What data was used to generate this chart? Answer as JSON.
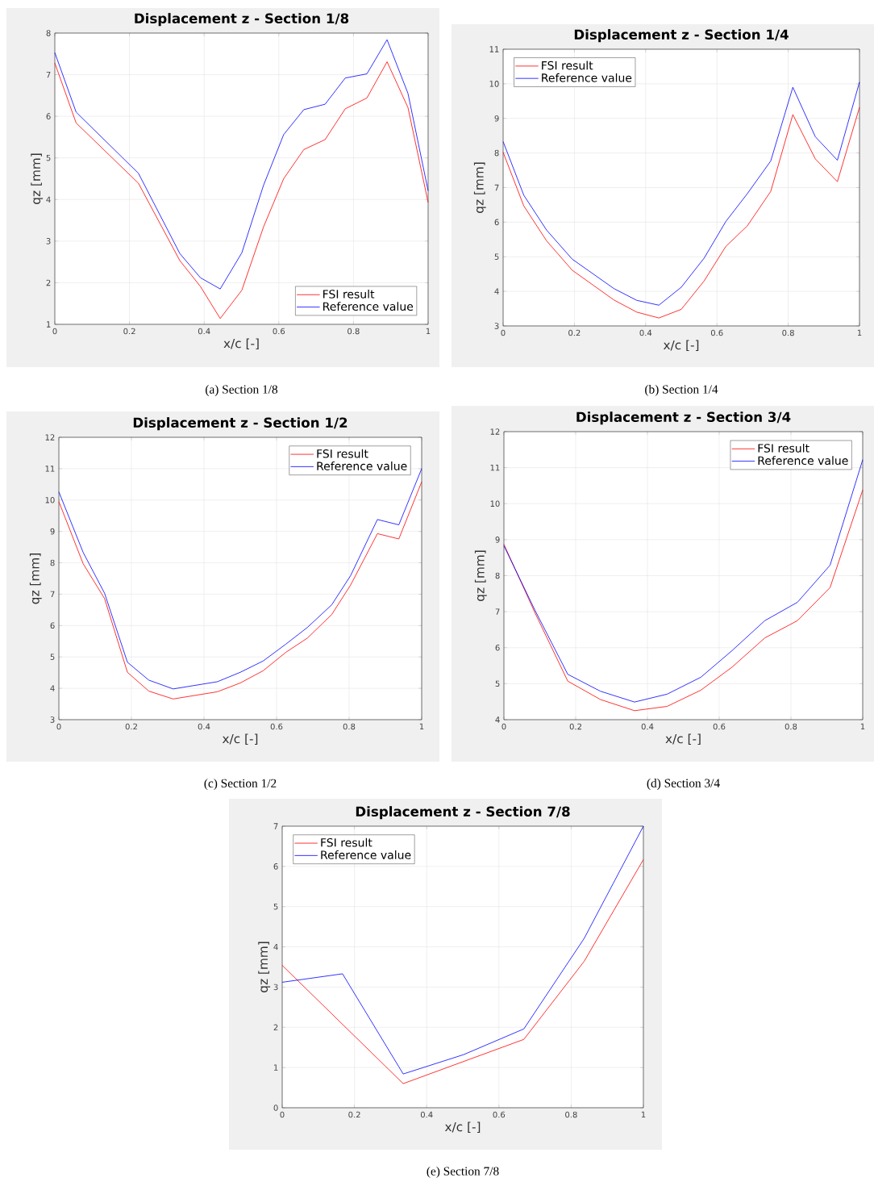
{
  "chart_data": [
    {
      "type": "line",
      "title": "Displacement z - Section 1/8",
      "xlabel": "x/c [-]",
      "ylabel": "qz [mm]",
      "annotations": [
        "(a) Section 1/8"
      ],
      "grid": true,
      "legend": "bottom right",
      "xlim": [
        0,
        1
      ],
      "ylim": [
        1,
        8
      ],
      "xticks": [
        0,
        0.2,
        0.4,
        0.6,
        0.8,
        1
      ],
      "yticks": [
        1,
        2,
        3,
        4,
        5,
        6,
        7,
        8
      ],
      "x": [
        0,
        0.057,
        0.224,
        0.335,
        0.39,
        0.443,
        0.501,
        0.559,
        0.613,
        0.667,
        0.724,
        0.778,
        0.836,
        0.89,
        0.946,
        1
      ],
      "series": [
        {
          "name": "FSI result",
          "color": "#ff0000",
          "values": [
            7.28,
            5.84,
            4.39,
            2.53,
            1.91,
            1.14,
            1.82,
            3.34,
            4.5,
            5.2,
            5.44,
            6.18,
            6.44,
            7.31,
            6.21,
            3.93
          ]
        },
        {
          "name": "Reference value",
          "color": "#0000ff",
          "values": [
            7.53,
            6.1,
            4.63,
            2.7,
            2.12,
            1.85,
            2.72,
            4.34,
            5.56,
            6.16,
            6.29,
            6.92,
            7.02,
            7.84,
            6.55,
            4.21
          ]
        }
      ]
    },
    {
      "type": "line",
      "title": "Displacement z - Section 1/4",
      "xlabel": "x/c [-]",
      "ylabel": "qz [mm]",
      "annotations": [
        "(b) Section 1/4"
      ],
      "grid": true,
      "legend": "top left",
      "xlim": [
        0,
        1
      ],
      "ylim": [
        3,
        11
      ],
      "xticks": [
        0,
        0.2,
        0.4,
        0.6,
        0.8,
        1
      ],
      "yticks": [
        3,
        4,
        5,
        6,
        7,
        8,
        9,
        10,
        11
      ],
      "x": [
        0,
        0.058,
        0.122,
        0.194,
        0.311,
        0.375,
        0.437,
        0.5,
        0.564,
        0.625,
        0.685,
        0.751,
        0.813,
        0.876,
        0.938,
        1
      ],
      "series": [
        {
          "name": "FSI result",
          "color": "#ff0000",
          "values": [
            8.02,
            6.47,
            5.46,
            4.61,
            3.75,
            3.4,
            3.23,
            3.48,
            4.3,
            5.3,
            5.89,
            6.89,
            9.11,
            7.83,
            7.17,
            9.32
          ]
        },
        {
          "name": "Reference value",
          "color": "#0000ff",
          "values": [
            8.33,
            6.78,
            5.77,
            4.93,
            4.08,
            3.74,
            3.6,
            4.12,
            4.96,
            6.02,
            6.82,
            7.77,
            9.9,
            8.47,
            7.79,
            10.05
          ]
        }
      ]
    },
    {
      "type": "line",
      "title": "Displacement z - Section 1/2",
      "xlabel": "x/c [-]",
      "ylabel": "qz [mm]",
      "annotations": [
        "(c) Section 1/2"
      ],
      "grid": true,
      "legend": "top right",
      "xlim": [
        0,
        1
      ],
      "ylim": [
        3,
        12
      ],
      "xticks": [
        0,
        0.2,
        0.4,
        0.6,
        0.8,
        1
      ],
      "yticks": [
        3,
        4,
        5,
        6,
        7,
        8,
        9,
        10,
        11,
        12
      ],
      "x": [
        0,
        0.067,
        0.126,
        0.189,
        0.248,
        0.315,
        0.437,
        0.5,
        0.563,
        0.626,
        0.685,
        0.752,
        0.804,
        0.878,
        0.937,
        1
      ],
      "series": [
        {
          "name": "FSI result",
          "color": "#ff0000",
          "values": [
            9.95,
            7.97,
            6.86,
            4.51,
            3.91,
            3.66,
            3.89,
            4.17,
            4.56,
            5.15,
            5.6,
            6.35,
            7.29,
            8.93,
            8.76,
            10.58
          ]
        },
        {
          "name": "Reference value",
          "color": "#0000ff",
          "values": [
            10.26,
            8.33,
            7.03,
            4.83,
            4.26,
            3.98,
            4.21,
            4.51,
            4.87,
            5.41,
            5.94,
            6.66,
            7.59,
            9.38,
            9.21,
            11.0
          ]
        }
      ]
    },
    {
      "type": "line",
      "title": "Displacement z - Section 3/4",
      "xlabel": "x/c [-]",
      "ylabel": "qz [mm]",
      "annotations": [
        "(d) Section 3/4"
      ],
      "grid": true,
      "legend": "top right",
      "xlim": [
        0,
        1
      ],
      "ylim": [
        4,
        12
      ],
      "xticks": [
        0,
        0.2,
        0.4,
        0.6,
        0.8,
        1
      ],
      "yticks": [
        4,
        5,
        6,
        7,
        8,
        9,
        10,
        11,
        12
      ],
      "x": [
        0,
        0.087,
        0.178,
        0.269,
        0.364,
        0.455,
        0.549,
        0.636,
        0.727,
        0.818,
        0.909,
        1
      ],
      "series": [
        {
          "name": "FSI result",
          "color": "#ff0000",
          "values": [
            8.87,
            6.96,
            5.07,
            4.56,
            4.25,
            4.37,
            4.82,
            5.46,
            6.27,
            6.75,
            7.67,
            10.38
          ]
        },
        {
          "name": "Reference value",
          "color": "#0000ff",
          "values": [
            8.83,
            7.03,
            5.26,
            4.79,
            4.49,
            4.71,
            5.18,
            5.92,
            6.75,
            7.26,
            8.29,
            11.22
          ]
        }
      ]
    },
    {
      "type": "line",
      "title": "Displacement z - Section 7/8",
      "xlabel": "x/c [-]",
      "ylabel": "qz [mm]",
      "annotations": [
        "(e) Section 7/8"
      ],
      "grid": true,
      "legend": "top left",
      "xlim": [
        0,
        1
      ],
      "ylim": [
        0,
        7
      ],
      "xticks": [
        0,
        0.2,
        0.4,
        0.6,
        0.8,
        1
      ],
      "yticks": [
        0,
        1,
        2,
        3,
        4,
        5,
        6,
        7
      ],
      "series": [
        {
          "name": "FSI result",
          "color": "#ff0000",
          "x": [
            0,
            0.335,
            0.669,
            0.836,
            1
          ],
          "values": [
            3.54,
            0.6,
            1.7,
            3.64,
            6.17
          ]
        },
        {
          "name": "Reference value",
          "color": "#0000ff",
          "x": [
            0,
            0.167,
            0.335,
            0.502,
            0.669,
            0.836,
            1
          ],
          "values": [
            3.12,
            3.33,
            0.84,
            1.32,
            1.96,
            4.21,
            7.0
          ]
        }
      ]
    }
  ]
}
